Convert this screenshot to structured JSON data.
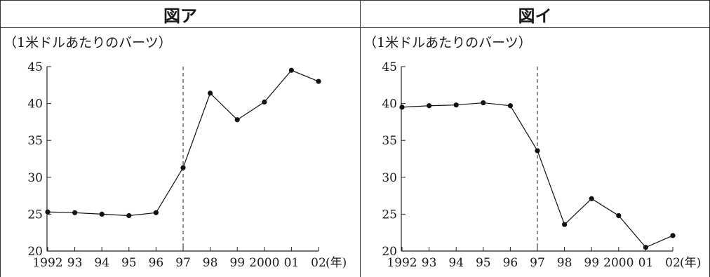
{
  "chart_data": [
    {
      "type": "line",
      "title": "図ア",
      "unit_label": "（1米ドルあたりのバーツ）",
      "x": [
        "1992",
        "93",
        "94",
        "95",
        "96",
        "97",
        "98",
        "99",
        "2000",
        "01",
        "02"
      ],
      "x_unit": "(年)",
      "ylim": [
        20,
        45
      ],
      "yticks": [
        20,
        25,
        30,
        35,
        40,
        45
      ],
      "series": [
        {
          "values": [
            25.3,
            25.2,
            25.0,
            24.8,
            25.2,
            31.3,
            41.4,
            37.8,
            40.2,
            44.5,
            43.0
          ]
        }
      ],
      "reference_line_x": "97",
      "grid": false
    },
    {
      "type": "line",
      "title": "図イ",
      "unit_label": "（1米ドルあたりのバーツ）",
      "x": [
        "1992",
        "93",
        "94",
        "95",
        "96",
        "97",
        "98",
        "99",
        "2000",
        "01",
        "02"
      ],
      "x_unit": "(年)",
      "ylim": [
        20,
        45
      ],
      "yticks": [
        20,
        25,
        30,
        35,
        40,
        45
      ],
      "series": [
        {
          "values": [
            39.5,
            39.7,
            39.8,
            40.1,
            39.7,
            33.6,
            23.6,
            27.1,
            24.8,
            20.5,
            22.1
          ]
        }
      ],
      "reference_line_x": "97",
      "grid": false
    }
  ]
}
